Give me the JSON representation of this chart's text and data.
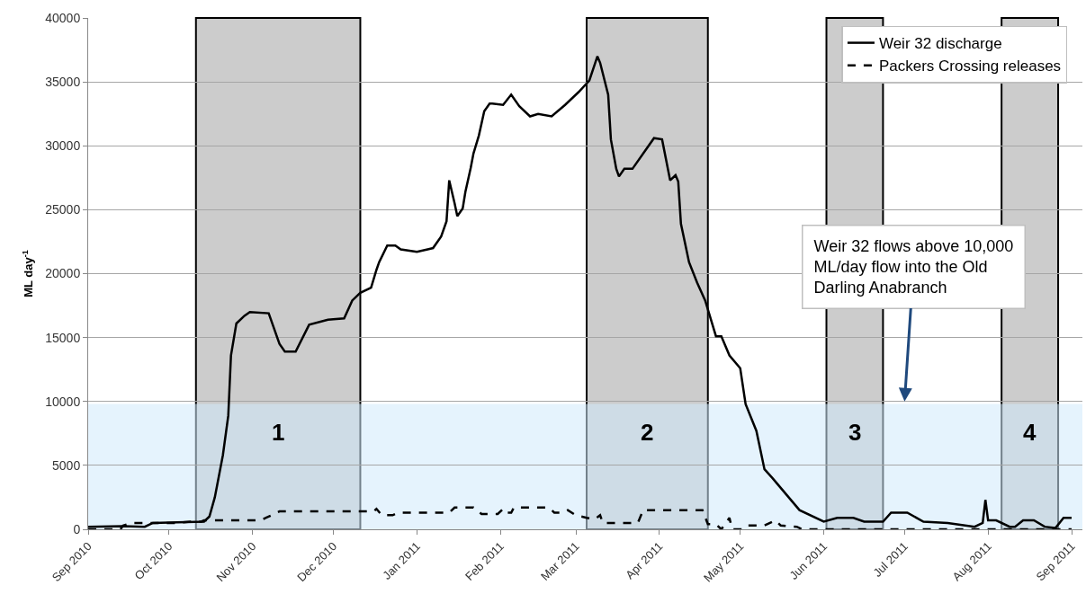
{
  "chart_data": {
    "type": "line",
    "ylabel": "ML day$^{-1}$",
    "xlim": [
      "2010-09-01",
      "2011-09-05"
    ],
    "xticks": [
      {
        "value": "2010-09-01",
        "label": "Sep 2010"
      },
      {
        "value": "2010-10-01",
        "label": "Oct 2010"
      },
      {
        "value": "2010-11-01",
        "label": "Nov 2010"
      },
      {
        "value": "2010-12-01",
        "label": "Dec 2010"
      },
      {
        "value": "2011-01-01",
        "label": "Jan 2011"
      },
      {
        "value": "2011-02-01",
        "label": "Feb 2011"
      },
      {
        "value": "2011-03-01",
        "label": "Mar 2011"
      },
      {
        "value": "2011-04-01",
        "label": "Apr 2011"
      },
      {
        "value": "2011-05-01",
        "label": "May 2011"
      },
      {
        "value": "2011-06-01",
        "label": "Jun 2011"
      },
      {
        "value": "2011-07-01",
        "label": "Jul 2011"
      },
      {
        "value": "2011-08-01",
        "label": "Aug 2011"
      },
      {
        "value": "2011-09-01",
        "label": "Sep 2011"
      }
    ],
    "ylim": [
      0,
      40000
    ],
    "yticks": [
      0,
      5000,
      10000,
      15000,
      20000,
      25000,
      30000,
      35000,
      40000
    ],
    "grid": "y",
    "legend": "top right",
    "marker": "none",
    "series": [
      {
        "name": "Weir 32 discharge",
        "color": "#000000",
        "line_style": "solid",
        "x": [
          "2010-09-01",
          "2010-09-14",
          "2010-09-22",
          "2010-09-25",
          "2010-10-04",
          "2010-10-14",
          "2010-10-16",
          "2010-10-18",
          "2010-10-21",
          "2010-10-23",
          "2010-10-24",
          "2010-10-26",
          "2010-10-29",
          "2010-10-31",
          "2010-11-07",
          "2010-11-11",
          "2010-11-13",
          "2010-11-17",
          "2010-11-22",
          "2010-11-29",
          "2010-12-05",
          "2010-12-08",
          "2010-12-11",
          "2010-12-15",
          "2010-12-17",
          "2010-12-18",
          "2010-12-21",
          "2010-12-24",
          "2010-12-26",
          "2011-01-01",
          "2011-01-05",
          "2011-01-07",
          "2011-01-10",
          "2011-01-12",
          "2011-01-13",
          "2011-01-15",
          "2011-01-16",
          "2011-01-18",
          "2011-01-19",
          "2011-01-21",
          "2011-01-22",
          "2011-01-24",
          "2011-01-26",
          "2011-01-28",
          "2011-01-29",
          "2011-02-02",
          "2011-02-05",
          "2011-02-08",
          "2011-02-12",
          "2011-02-15",
          "2011-02-20",
          "2011-02-25",
          "2011-03-02",
          "2011-03-06",
          "2011-03-09",
          "2011-03-10",
          "2011-03-13",
          "2011-03-14",
          "2011-03-16",
          "2011-03-17",
          "2011-03-19",
          "2011-03-22",
          "2011-03-27",
          "2011-03-30",
          "2011-04-02",
          "2011-04-05",
          "2011-04-07",
          "2011-04-08",
          "2011-04-09",
          "2011-04-12",
          "2011-04-15",
          "2011-04-18",
          "2011-04-22",
          "2011-04-24",
          "2011-04-27",
          "2011-05-01",
          "2011-05-03",
          "2011-05-07",
          "2011-05-10",
          "2011-05-13",
          "2011-05-23",
          "2011-06-01",
          "2011-06-06",
          "2011-06-12",
          "2011-06-16",
          "2011-06-23",
          "2011-06-26",
          "2011-07-02",
          "2011-07-08",
          "2011-07-17",
          "2011-07-27",
          "2011-07-30",
          "2011-07-31",
          "2011-08-01",
          "2011-08-04",
          "2011-08-09",
          "2011-08-11",
          "2011-08-14",
          "2011-08-18",
          "2011-08-22",
          "2011-08-26",
          "2011-08-29",
          "2011-09-01"
        ],
        "values": [
          200,
          250,
          200,
          500,
          550,
          600,
          1000,
          2500,
          5800,
          8900,
          13600,
          16100,
          16700,
          17000,
          16900,
          14500,
          13900,
          13900,
          16000,
          16400,
          16500,
          17900,
          18500,
          18900,
          20300,
          20900,
          22200,
          22200,
          21900,
          21700,
          21900,
          22000,
          22900,
          24100,
          27300,
          25500,
          24500,
          25100,
          26400,
          28300,
          29400,
          30800,
          32700,
          33300,
          33300,
          33200,
          34000,
          33100,
          32300,
          32500,
          32300,
          33200,
          34200,
          35100,
          37000,
          36500,
          34000,
          30500,
          28200,
          27600,
          28200,
          28200,
          29700,
          30600,
          30500,
          27300,
          27700,
          27200,
          23900,
          20900,
          19300,
          17900,
          15100,
          15100,
          13600,
          12600,
          9800,
          7700,
          4700,
          4000,
          1500,
          600,
          900,
          900,
          600,
          600,
          1300,
          1300,
          600,
          500,
          200,
          500,
          2300,
          700,
          700,
          200,
          200,
          700,
          700,
          200,
          100,
          900,
          900
        ]
      },
      {
        "name": "Packers Crossing releases",
        "color": "#000000",
        "line_style": "dashed",
        "x": [
          "2010-09-01",
          "2010-09-13",
          "2010-09-14",
          "2010-09-17",
          "2010-10-04",
          "2010-10-09",
          "2010-10-13",
          "2010-10-14",
          "2010-11-04",
          "2010-11-06",
          "2010-11-11",
          "2010-12-16",
          "2010-12-17",
          "2010-12-19",
          "2010-12-23",
          "2010-12-25",
          "2011-01-13",
          "2011-01-15",
          "2011-01-22",
          "2011-01-25",
          "2011-01-31",
          "2011-02-02",
          "2011-02-03",
          "2011-02-05",
          "2011-02-06",
          "2011-02-19",
          "2011-02-21",
          "2011-02-24",
          "2011-02-26",
          "2011-03-01",
          "2011-03-05",
          "2011-03-08",
          "2011-03-10",
          "2011-03-11",
          "2011-03-24",
          "2011-03-26",
          "2011-04-17",
          "2011-04-19",
          "2011-04-22",
          "2011-04-24",
          "2011-04-27",
          "2011-04-28",
          "2011-05-02",
          "2011-05-04",
          "2011-05-10",
          "2011-05-14",
          "2011-05-16",
          "2011-05-22",
          "2011-05-24",
          "2011-09-01"
        ],
        "values": [
          0,
          0,
          300,
          500,
          500,
          600,
          600,
          700,
          700,
          900,
          1400,
          1400,
          1600,
          1100,
          1100,
          1300,
          1300,
          1700,
          1700,
          1200,
          1200,
          1600,
          1300,
          1300,
          1700,
          1700,
          1300,
          1300,
          1500,
          1100,
          900,
          800,
          1100,
          500,
          500,
          1500,
          1500,
          400,
          400,
          0,
          900,
          0,
          0,
          300,
          300,
          700,
          300,
          200,
          0,
          0
        ]
      }
    ],
    "bands": [
      {
        "axis": "x",
        "from": "2010-10-11",
        "to": "2010-12-11",
        "label": "1",
        "color": "#cccccc"
      },
      {
        "axis": "x",
        "from": "2011-03-05",
        "to": "2011-04-19",
        "label": "2",
        "color": "#cccccc"
      },
      {
        "axis": "x",
        "from": "2011-06-02",
        "to": "2011-06-23",
        "label": "3",
        "color": "#cccccc"
      },
      {
        "axis": "x",
        "from": "2011-08-06",
        "to": "2011-08-27",
        "label": "4",
        "color": "#cccccc"
      },
      {
        "axis": "y",
        "from": 0,
        "to": 9800,
        "color": "#cfe9fb"
      }
    ],
    "annotations": [
      {
        "text": "Weir 32 flows above 10,000 ML/day flow into the Old Darling Anabranch",
        "x": "2011-07-01",
        "y": 10000
      }
    ]
  }
}
